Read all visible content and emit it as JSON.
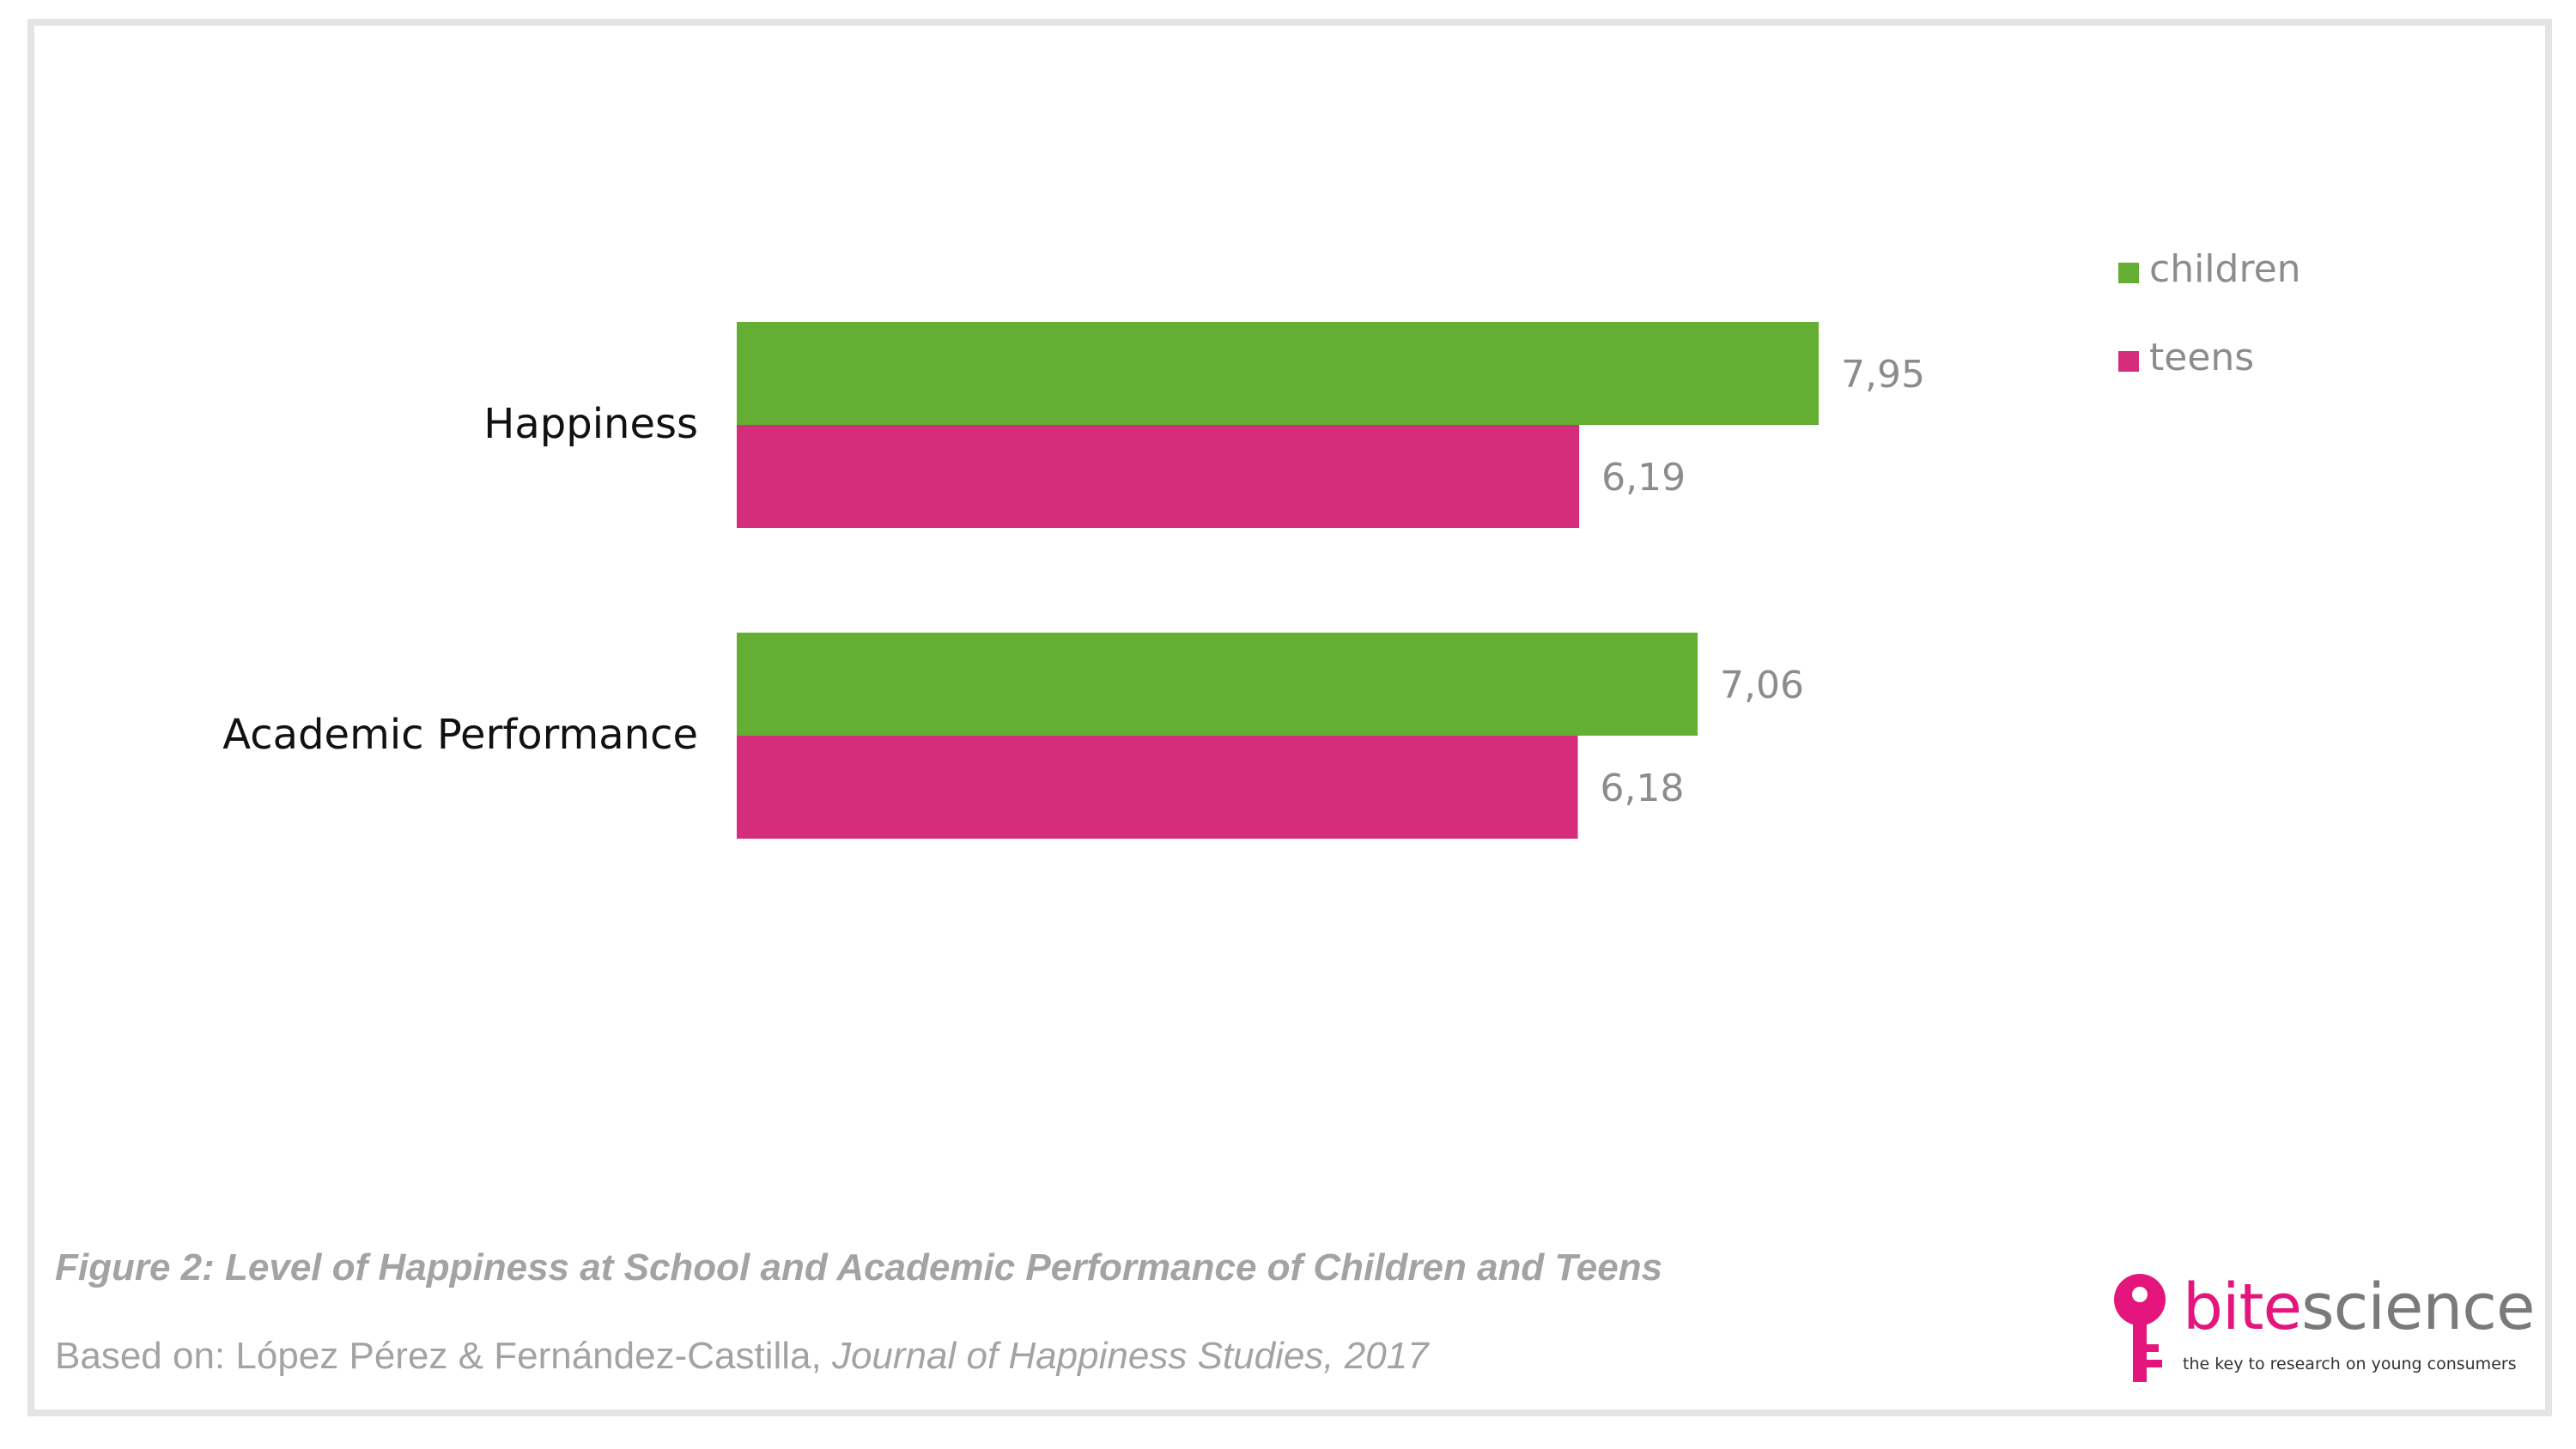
{
  "chart_data": {
    "type": "bar",
    "orientation": "horizontal",
    "categories": [
      "Happiness",
      "Academic Performance"
    ],
    "series": [
      {
        "name": "children",
        "values": [
          7.95,
          7.06
        ],
        "labels": [
          "7,95",
          "7,06"
        ],
        "color": "#63ae33"
      },
      {
        "name": "teens",
        "values": [
          6.19,
          6.18
        ],
        "labels": [
          "6,19",
          "6,18"
        ],
        "color": "#d52d7b"
      }
    ],
    "xlim": [
      0,
      10
    ],
    "grid": false,
    "legend": "top-right"
  },
  "caption": {
    "title": "Figure 2: Level of Happiness at School and Academic Performance of Children and Teens",
    "source_prefix": "Based on: López Pérez & Fernández-Castilla, ",
    "source_journal": "Journal of Happiness Studies, 2017"
  },
  "logo": {
    "word_bite": "bite",
    "word_science": "science",
    "tagline": "the key to research on young consumers",
    "icon": "key-icon",
    "colors": {
      "brand": "#e4157d",
      "text": "#7a7a7a"
    }
  }
}
